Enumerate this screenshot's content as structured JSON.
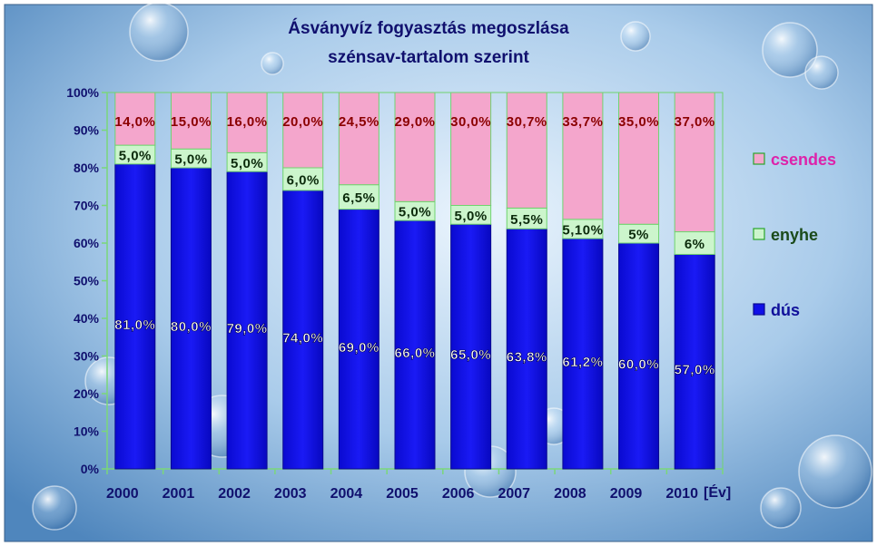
{
  "chart_data": {
    "type": "bar",
    "stacked": true,
    "percent_stacked": true,
    "title": [
      "Ásványvíz fogyasztás megoszlása",
      "szénsav-tartalom szerint"
    ],
    "xlabel": "[Év]",
    "ylabel": "",
    "ylim": [
      0,
      100
    ],
    "yticks": [
      "0%",
      "10%",
      "20%",
      "30%",
      "40%",
      "50%",
      "60%",
      "70%",
      "80%",
      "90%",
      "100%"
    ],
    "categories": [
      "2000",
      "2001",
      "2002",
      "2003",
      "2004",
      "2005",
      "2006",
      "2007",
      "2008",
      "2009",
      "2010"
    ],
    "series": [
      {
        "name": "dús",
        "color": "#1010e8",
        "values": [
          81,
          80,
          79,
          74,
          69,
          66,
          65,
          63.8,
          61.2,
          60,
          57
        ],
        "labels": [
          "81,0%",
          "80,0%",
          "79,0%",
          "74,0%",
          "69,0%",
          "66,0%",
          "65,0%",
          "63,8%",
          "61,2%",
          "60,0%",
          "57,0%"
        ]
      },
      {
        "name": "enyhe",
        "color": "#ccf5cc",
        "values": [
          5,
          5,
          5,
          6,
          6.5,
          5,
          5,
          5.5,
          5.1,
          5,
          6
        ],
        "labels": [
          "5,0%",
          "5,0%",
          "5,0%",
          "6,0%",
          "6,5%",
          "5,0%",
          "5,0%",
          "5,5%",
          "5,10%",
          "5%",
          "6%"
        ]
      },
      {
        "name": "csendes",
        "color": "#f4a6cc",
        "values": [
          14,
          15,
          16,
          20,
          24.5,
          29,
          30,
          30.7,
          33.7,
          35,
          37
        ],
        "labels": [
          "14,0%",
          "15,0%",
          "16,0%",
          "20,0%",
          "24,5%",
          "29,0%",
          "30,0%",
          "30,7%",
          "33,7%",
          "35,0%",
          "37,0%"
        ]
      }
    ],
    "legend_position": "right",
    "legend_order": [
      "csendes",
      "enyhe",
      "dús"
    ],
    "legend_colors": {
      "csendes": "#dd22aa",
      "enyhe": "#1a4a1a",
      "dús": "#10109a"
    },
    "label_colors": {
      "dús": "#ffffff",
      "enyhe": "#0b2a0b",
      "csendes": "#8b0000"
    },
    "title_color": "#10106e",
    "axis_text_color": "#10106e",
    "grid": false
  }
}
